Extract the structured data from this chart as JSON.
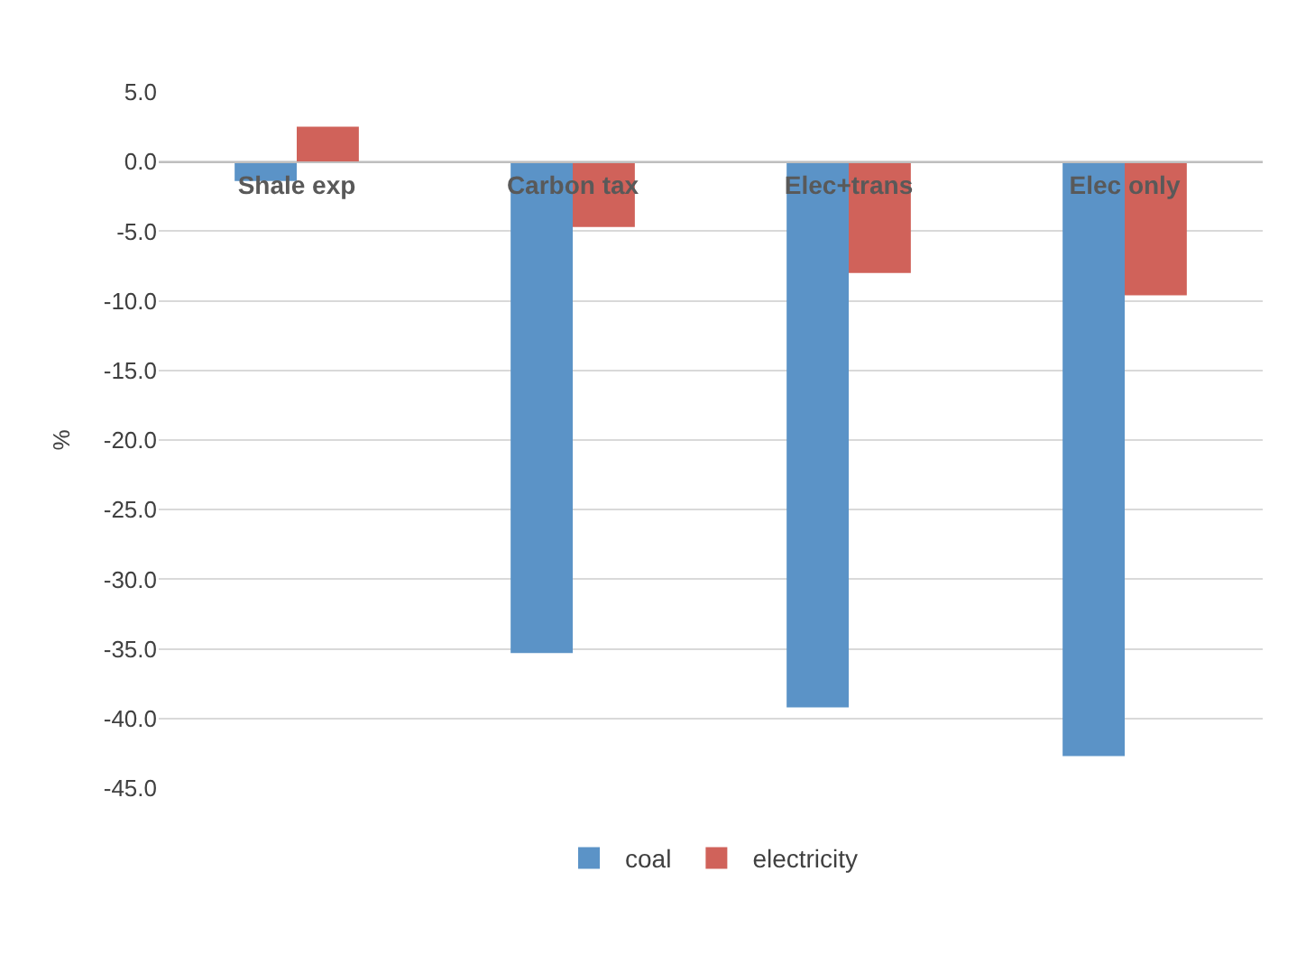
{
  "chart_data": {
    "type": "bar",
    "ylabel": "%",
    "categories": [
      "Shale exp",
      "Carbon tax",
      "Elec+trans",
      "Elec only"
    ],
    "series": [
      {
        "name": "coal",
        "color": "#5b93c7",
        "values": [
          -1.4,
          -35.3,
          -39.2,
          -42.7
        ]
      },
      {
        "name": "electricity",
        "color": "#d0625a",
        "values": [
          2.5,
          -4.7,
          -8.0,
          -9.6
        ]
      }
    ],
    "ylim": [
      -45,
      5
    ],
    "yticks": [
      {
        "value": 5,
        "label": "5.0"
      },
      {
        "value": 0,
        "label": "0.0"
      },
      {
        "value": -5,
        "label": "-5.0"
      },
      {
        "value": -10,
        "label": "-10.0"
      },
      {
        "value": -15,
        "label": "-15.0"
      },
      {
        "value": -20,
        "label": "-20.0"
      },
      {
        "value": -25,
        "label": "-25.0"
      },
      {
        "value": -30,
        "label": "-30.0"
      },
      {
        "value": -35,
        "label": "-35.0"
      },
      {
        "value": -40,
        "label": "-40.0"
      },
      {
        "value": -45,
        "label": "-45.0"
      }
    ],
    "grid": "y",
    "legend": "bottom"
  }
}
